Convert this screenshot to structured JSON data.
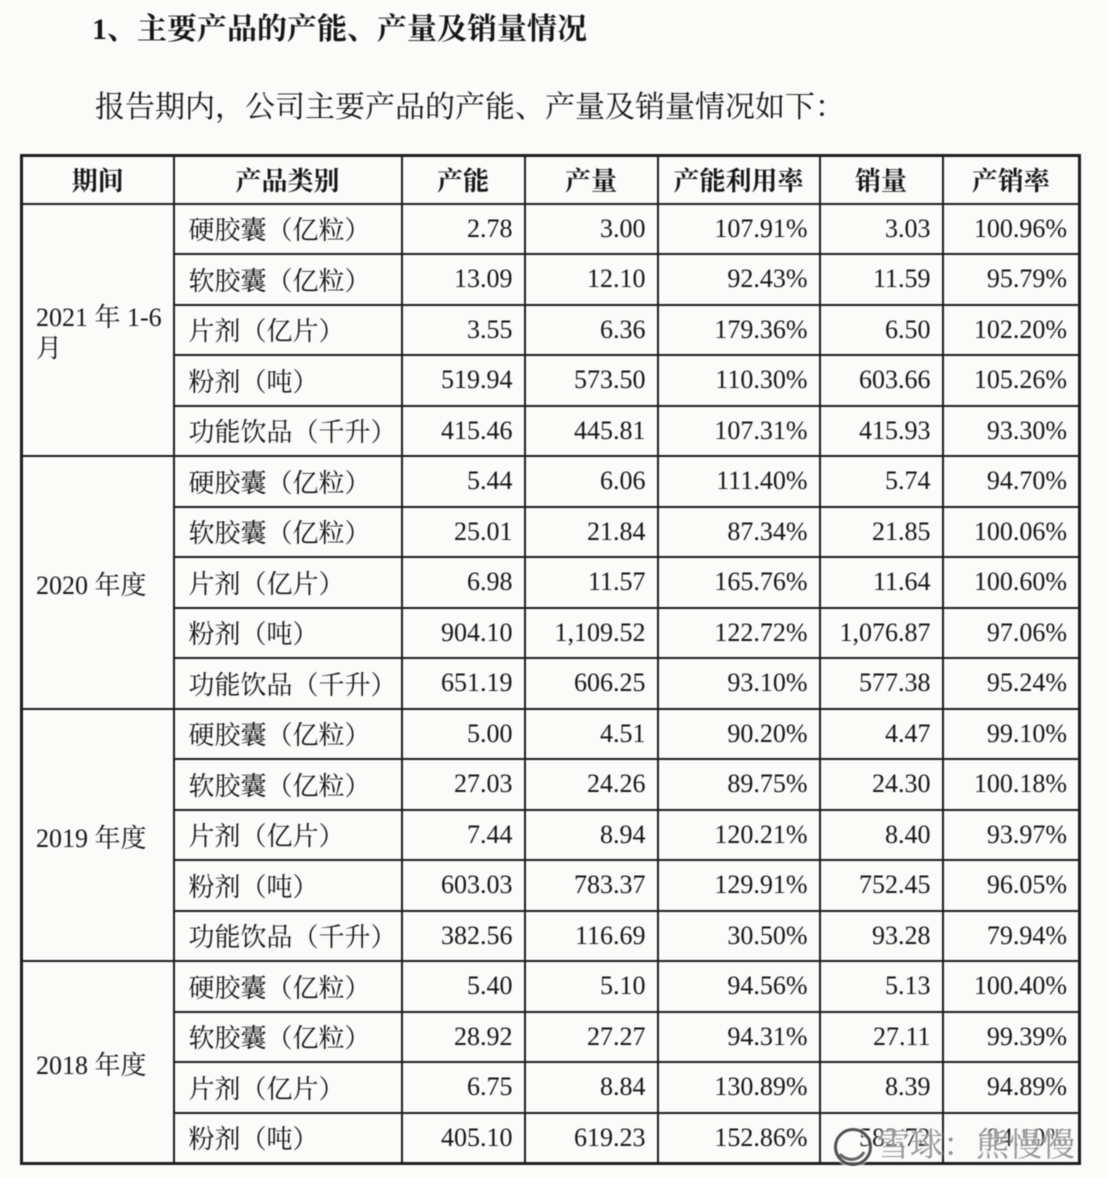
{
  "page": {
    "background": "#fbfbfa",
    "text_color": "#161616"
  },
  "heading": {
    "number": "1、",
    "text": "主要产品的产能、产量及销量情况"
  },
  "intro": "报告期内，公司主要产品的产能、产量及销量情况如下：",
  "table": {
    "columns": [
      "期间",
      "产品类别",
      "产能",
      "产量",
      "产能利用率",
      "销量",
      "产销率"
    ],
    "groups": [
      {
        "period": "2021 年 1-6 月",
        "rows": [
          {
            "product": "硬胶囊（亿粒）",
            "capacity": "2.78",
            "output": "3.00",
            "utilization": "107.91%",
            "sales": "3.03",
            "ratio": "100.96%"
          },
          {
            "product": "软胶囊（亿粒）",
            "capacity": "13.09",
            "output": "12.10",
            "utilization": "92.43%",
            "sales": "11.59",
            "ratio": "95.79%"
          },
          {
            "product": "片剂（亿片）",
            "capacity": "3.55",
            "output": "6.36",
            "utilization": "179.36%",
            "sales": "6.50",
            "ratio": "102.20%"
          },
          {
            "product": "粉剂（吨）",
            "capacity": "519.94",
            "output": "573.50",
            "utilization": "110.30%",
            "sales": "603.66",
            "ratio": "105.26%"
          },
          {
            "product": "功能饮品（千升）",
            "capacity": "415.46",
            "output": "445.81",
            "utilization": "107.31%",
            "sales": "415.93",
            "ratio": "93.30%"
          }
        ]
      },
      {
        "period": "2020 年度",
        "rows": [
          {
            "product": "硬胶囊（亿粒）",
            "capacity": "5.44",
            "output": "6.06",
            "utilization": "111.40%",
            "sales": "5.74",
            "ratio": "94.70%"
          },
          {
            "product": "软胶囊（亿粒）",
            "capacity": "25.01",
            "output": "21.84",
            "utilization": "87.34%",
            "sales": "21.85",
            "ratio": "100.06%"
          },
          {
            "product": "片剂（亿片）",
            "capacity": "6.98",
            "output": "11.57",
            "utilization": "165.76%",
            "sales": "11.64",
            "ratio": "100.60%"
          },
          {
            "product": "粉剂（吨）",
            "capacity": "904.10",
            "output": "1,109.52",
            "utilization": "122.72%",
            "sales": "1,076.87",
            "ratio": "97.06%"
          },
          {
            "product": "功能饮品（千升）",
            "capacity": "651.19",
            "output": "606.25",
            "utilization": "93.10%",
            "sales": "577.38",
            "ratio": "95.24%"
          }
        ]
      },
      {
        "period": "2019 年度",
        "rows": [
          {
            "product": "硬胶囊（亿粒）",
            "capacity": "5.00",
            "output": "4.51",
            "utilization": "90.20%",
            "sales": "4.47",
            "ratio": "99.10%"
          },
          {
            "product": "软胶囊（亿粒）",
            "capacity": "27.03",
            "output": "24.26",
            "utilization": "89.75%",
            "sales": "24.30",
            "ratio": "100.18%"
          },
          {
            "product": "片剂（亿片）",
            "capacity": "7.44",
            "output": "8.94",
            "utilization": "120.21%",
            "sales": "8.40",
            "ratio": "93.97%"
          },
          {
            "product": "粉剂（吨）",
            "capacity": "603.03",
            "output": "783.37",
            "utilization": "129.91%",
            "sales": "752.45",
            "ratio": "96.05%"
          },
          {
            "product": "功能饮品（千升）",
            "capacity": "382.56",
            "output": "116.69",
            "utilization": "30.50%",
            "sales": "93.28",
            "ratio": "79.94%"
          }
        ]
      },
      {
        "period": "2018 年度",
        "rows": [
          {
            "product": "硬胶囊（亿粒）",
            "capacity": "5.40",
            "output": "5.10",
            "utilization": "94.56%",
            "sales": "5.13",
            "ratio": "100.40%"
          },
          {
            "product": "软胶囊（亿粒）",
            "capacity": "28.92",
            "output": "27.27",
            "utilization": "94.31%",
            "sales": "27.11",
            "ratio": "99.39%"
          },
          {
            "product": "片剂（亿片）",
            "capacity": "6.75",
            "output": "8.84",
            "utilization": "130.89%",
            "sales": "8.39",
            "ratio": "94.89%"
          },
          {
            "product": "粉剂（吨）",
            "capacity": "405.10",
            "output": "619.23",
            "utilization": "152.86%",
            "sales": "582.72",
            "ratio": "94.10%"
          }
        ]
      }
    ]
  },
  "watermark": {
    "text": "雪球：熊慢慢",
    "logo": "snowball-icon",
    "color": "#7a7a7a"
  }
}
